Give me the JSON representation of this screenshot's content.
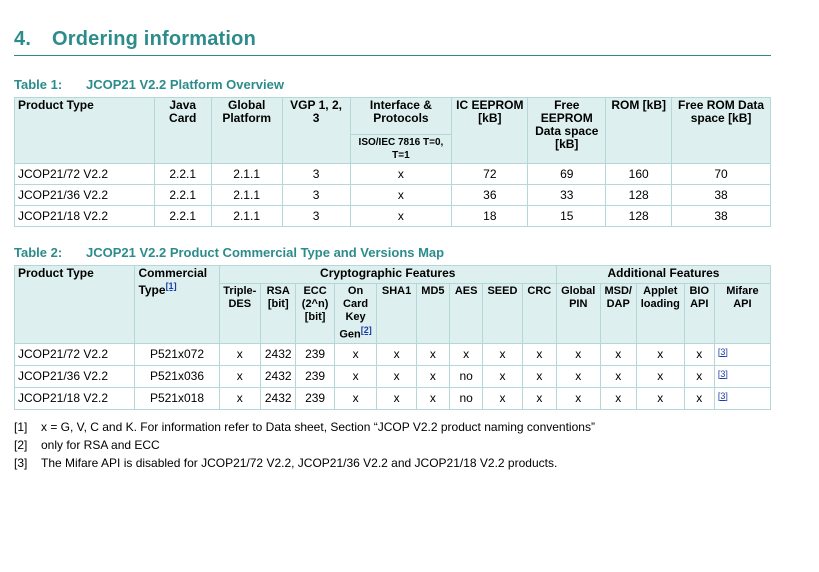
{
  "section": {
    "number": "4.",
    "title": "Ordering information"
  },
  "table1": {
    "caption_num": "Table 1:",
    "caption": "JCOP21 V2.2 Platform Overview",
    "headers": {
      "product": "Product Type",
      "java": "Java Card",
      "global": "Global Platform",
      "vgp": "VGP 1, 2, 3",
      "iface": "Interface & Protocols",
      "iface_sub": "ISO/IEC 7816 T=0, T=1",
      "ic": "IC EEPROM [kB]",
      "free_eeprom": "Free EEPROM Data space [kB]",
      "rom": "ROM [kB]",
      "free_rom": "Free ROM Data space [kB]"
    },
    "rows": [
      [
        "JCOP21/72 V2.2",
        "2.2.1",
        "2.1.1",
        "3",
        "x",
        "72",
        "69",
        "160",
        "70"
      ],
      [
        "JCOP21/36 V2.2",
        "2.2.1",
        "2.1.1",
        "3",
        "x",
        "36",
        "33",
        "128",
        "38"
      ],
      [
        "JCOP21/18 V2.2",
        "2.2.1",
        "2.1.1",
        "3",
        "x",
        "18",
        "15",
        "128",
        "38"
      ]
    ]
  },
  "table2": {
    "caption_num": "Table 2:",
    "caption": "JCOP21 V2.2 Product Commercial Type and Versions Map",
    "headers": {
      "product": "Product Type",
      "commercial": "Commercial Type",
      "commercial_ref": "[1]",
      "crypto_group": "Cryptographic Features",
      "additional_group": "Additional Features",
      "crypto": [
        "Triple-DES",
        "RSA [bit]",
        "ECC (2^n) [bit]",
        "On Card Key Gen",
        "SHA1",
        "MD5",
        "AES",
        "SEED",
        "CRC"
      ],
      "keygen_ref": "[2]",
      "additional": [
        "Global PIN",
        "MSD/ DAP",
        "Applet loading",
        "BIO API",
        "Mifare API"
      ]
    },
    "rows": [
      [
        "JCOP21/72 V2.2",
        "P521x072",
        "x",
        "2432",
        "239",
        "x",
        "x",
        "x",
        "x",
        "x",
        "x",
        "x",
        "x",
        "x",
        "x",
        "[3]"
      ],
      [
        "JCOP21/36 V2.2",
        "P521x036",
        "x",
        "2432",
        "239",
        "x",
        "x",
        "x",
        "no",
        "x",
        "x",
        "x",
        "x",
        "x",
        "x",
        "[3]"
      ],
      [
        "JCOP21/18 V2.2",
        "P521x018",
        "x",
        "2432",
        "239",
        "x",
        "x",
        "x",
        "no",
        "x",
        "x",
        "x",
        "x",
        "x",
        "x",
        "[3]"
      ]
    ]
  },
  "footnotes": [
    {
      "num": "[1]",
      "text": "x = G, V, C and K. For information refer to Data sheet, Section “JCOP V2.2 product naming conventions”"
    },
    {
      "num": "[2]",
      "text": "only for RSA and ECC"
    },
    {
      "num": "[3]",
      "text": "The Mifare API is disabled for JCOP21/72 V2.2, JCOP21/36 V2.2 and JCOP21/18 V2.2 products."
    }
  ]
}
